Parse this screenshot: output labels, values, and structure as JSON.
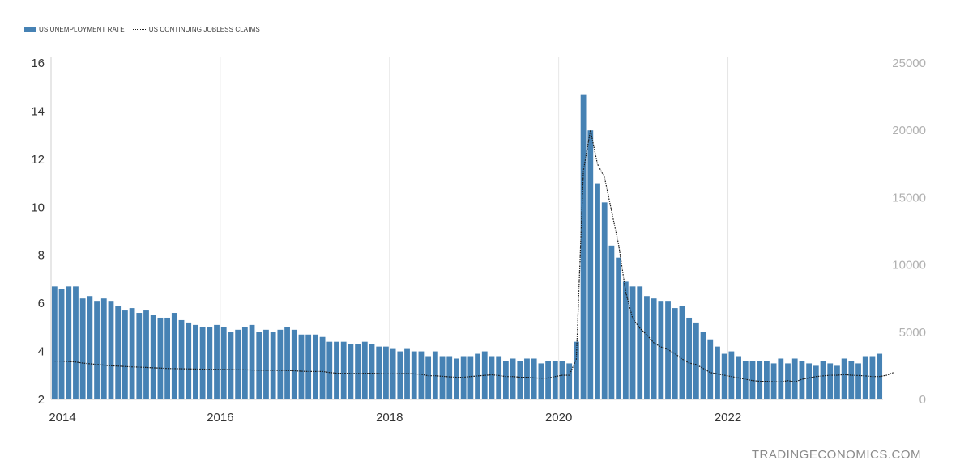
{
  "legend": {
    "series1_label": "US UNEMPLOYMENT RATE",
    "series2_label": "US CONTINUING JOBLESS CLAIMS"
  },
  "watermark": "TRADINGECONOMICS.COM",
  "colors": {
    "bar": "#4682b4",
    "line": "#1a1a1a",
    "grid": "#e6e6e6",
    "right_axis_text": "#b0b0b0"
  },
  "chart_data": {
    "type": "bar",
    "x_range": [
      "2014-01",
      "2023-10"
    ],
    "x_ticks": [
      "2014",
      "2016",
      "2018",
      "2020",
      "2022"
    ],
    "y_left": {
      "min": 2,
      "max": 16,
      "ticks": [
        2,
        4,
        6,
        8,
        10,
        12,
        14,
        16
      ]
    },
    "y_right": {
      "min": 0,
      "max": 25000,
      "ticks": [
        0,
        5000,
        10000,
        15000,
        20000,
        25000
      ]
    },
    "grid": "vertical",
    "legend_position": "top-left",
    "series": [
      {
        "name": "US UNEMPLOYMENT RATE",
        "type": "bar",
        "axis": "left",
        "start": "2014-01",
        "frequency": "monthly",
        "values": [
          6.7,
          6.6,
          6.7,
          6.7,
          6.2,
          6.3,
          6.1,
          6.2,
          6.1,
          5.9,
          5.7,
          5.8,
          5.6,
          5.7,
          5.5,
          5.4,
          5.4,
          5.6,
          5.3,
          5.2,
          5.1,
          5.0,
          5.0,
          5.1,
          5.0,
          4.8,
          4.9,
          5.0,
          5.1,
          4.8,
          4.9,
          4.8,
          4.9,
          5.0,
          4.9,
          4.7,
          4.7,
          4.7,
          4.6,
          4.4,
          4.4,
          4.4,
          4.3,
          4.3,
          4.4,
          4.3,
          4.2,
          4.2,
          4.1,
          4.0,
          4.1,
          4.0,
          4.0,
          3.8,
          4.0,
          3.8,
          3.8,
          3.7,
          3.8,
          3.8,
          3.9,
          4.0,
          3.8,
          3.8,
          3.6,
          3.7,
          3.6,
          3.7,
          3.7,
          3.5,
          3.6,
          3.6,
          3.6,
          3.5,
          4.4,
          14.7,
          13.2,
          11.0,
          10.2,
          8.4,
          7.9,
          6.9,
          6.7,
          6.7,
          6.3,
          6.2,
          6.1,
          6.1,
          5.8,
          5.9,
          5.4,
          5.2,
          4.8,
          4.5,
          4.2,
          3.9,
          4.0,
          3.8,
          3.6,
          3.6,
          3.6,
          3.6,
          3.5,
          3.7,
          3.5,
          3.7,
          3.6,
          3.5,
          3.4,
          3.6,
          3.5,
          3.4,
          3.7,
          3.6,
          3.5,
          3.8,
          3.8,
          3.9
        ]
      },
      {
        "name": "US CONTINUING JOBLESS CLAIMS",
        "type": "line",
        "axis": "right",
        "start": "2014-01",
        "frequency": "monthly",
        "values": [
          2850,
          2850,
          2820,
          2780,
          2700,
          2650,
          2600,
          2550,
          2500,
          2480,
          2450,
          2420,
          2400,
          2380,
          2350,
          2330,
          2300,
          2290,
          2280,
          2270,
          2260,
          2250,
          2240,
          2230,
          2220,
          2210,
          2200,
          2200,
          2190,
          2180,
          2180,
          2170,
          2160,
          2150,
          2130,
          2100,
          2080,
          2080,
          2080,
          2000,
          1950,
          1950,
          1930,
          1930,
          1950,
          1950,
          1920,
          1900,
          1900,
          1920,
          1920,
          1900,
          1870,
          1760,
          1760,
          1720,
          1680,
          1650,
          1650,
          1700,
          1750,
          1790,
          1830,
          1780,
          1700,
          1700,
          1650,
          1650,
          1600,
          1580,
          1590,
          1700,
          1800,
          1800,
          3000,
          17000,
          20000,
          17500,
          16500,
          14000,
          11500,
          8000,
          6000,
          5300,
          4800,
          4200,
          3900,
          3700,
          3400,
          3000,
          2700,
          2600,
          2300,
          2000,
          1900,
          1800,
          1700,
          1600,
          1500,
          1400,
          1350,
          1350,
          1320,
          1300,
          1400,
          1300,
          1500,
          1600,
          1700,
          1750,
          1800,
          1800,
          1850,
          1800,
          1780,
          1750,
          1700,
          1700,
          1800,
          2000
        ]
      }
    ]
  }
}
